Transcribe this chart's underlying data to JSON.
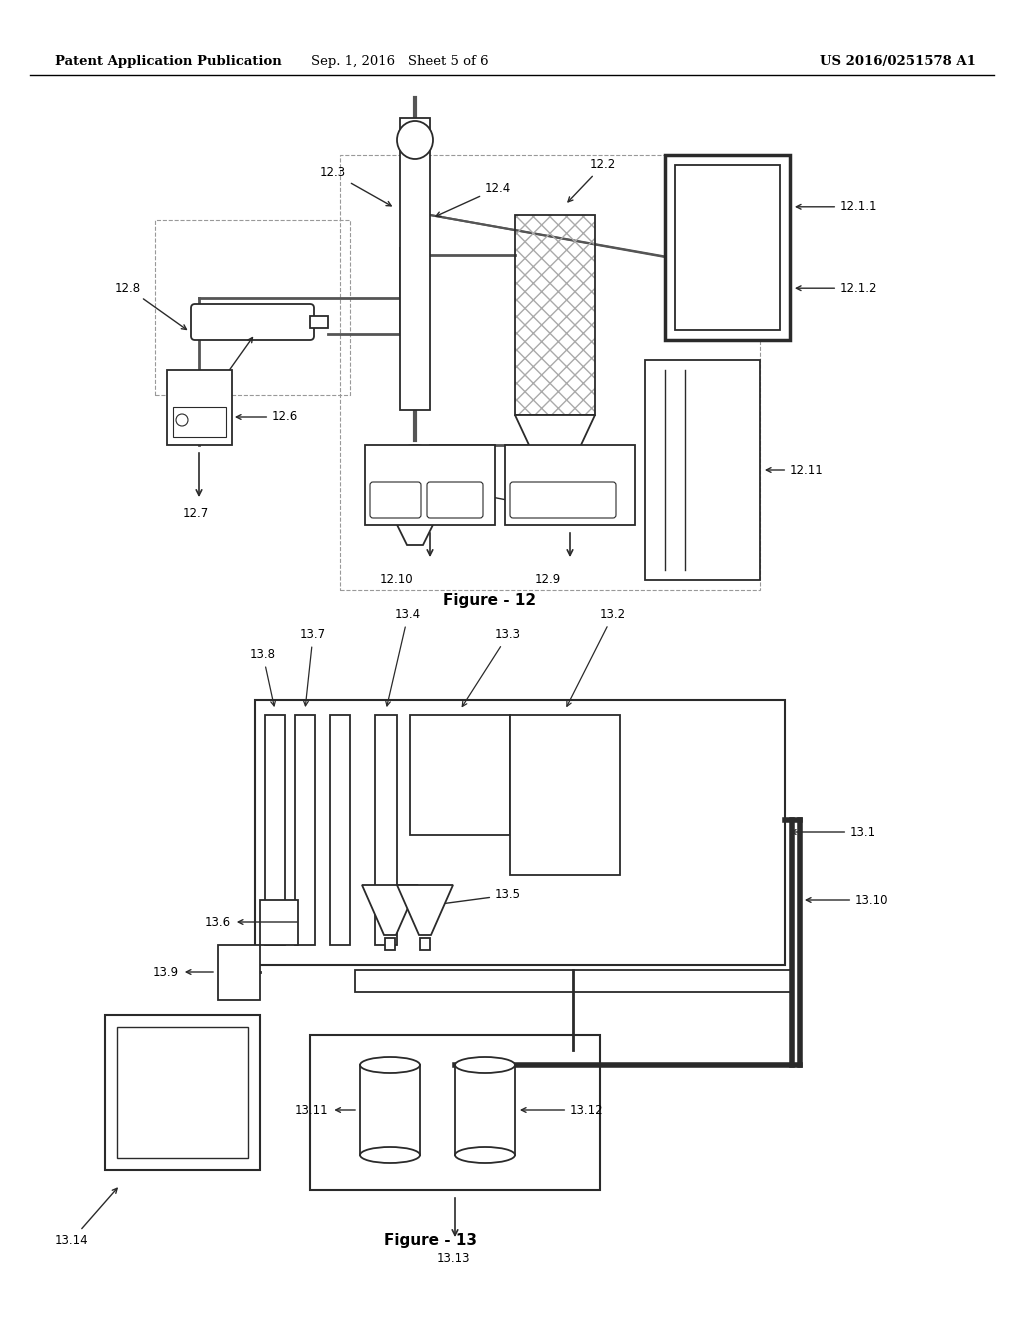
{
  "bg_color": "#ffffff",
  "header_left": "Patent Application Publication",
  "header_mid": "Sep. 1, 2016   Sheet 5 of 6",
  "header_right": "US 2016/0251578 A1",
  "fig12_caption": "Figure - 12",
  "fig13_caption": "Figure - 13"
}
